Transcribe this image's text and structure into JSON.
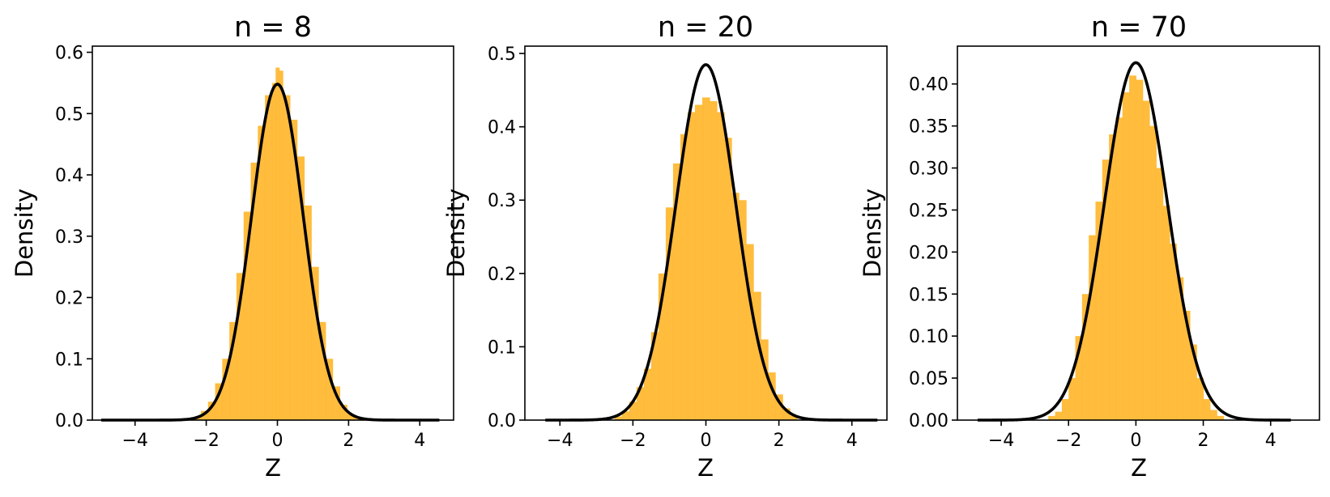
{
  "figure": {
    "colors": {
      "bar": "#ffb833",
      "curve": "#000000",
      "axis": "#000000"
    }
  },
  "chart_data": [
    {
      "type": "histogram",
      "title": "n = 8",
      "xlabel": "Z",
      "ylabel": "Density",
      "xlim": [
        -5.2,
        4.95
      ],
      "ylim": [
        0,
        0.61
      ],
      "xticks": [
        -4,
        -2,
        0,
        2,
        4
      ],
      "xtick_labels": [
        "−4",
        "−2",
        "0",
        "2",
        "4"
      ],
      "yticks": [
        0.0,
        0.1,
        0.2,
        0.3,
        0.4,
        0.5,
        0.6
      ],
      "ytick_labels": [
        "0.0",
        "0.1",
        "0.2",
        "0.3",
        "0.4",
        "0.5",
        "0.6"
      ],
      "grid": false,
      "histogram": {
        "bin_edges": [
          -2.35,
          -2.15,
          -1.95,
          -1.75,
          -1.55,
          -1.35,
          -1.15,
          -0.95,
          -0.75,
          -0.55,
          -0.35,
          -0.15,
          -0.05,
          0.05,
          0.15,
          0.35,
          0.55,
          0.75,
          0.95,
          1.15,
          1.35,
          1.55,
          1.75,
          1.95,
          2.15,
          2.35
        ],
        "densities": [
          0.005,
          0.015,
          0.03,
          0.06,
          0.1,
          0.16,
          0.24,
          0.34,
          0.42,
          0.48,
          0.53,
          0.55,
          0.575,
          0.57,
          0.53,
          0.49,
          0.43,
          0.35,
          0.25,
          0.16,
          0.1,
          0.055,
          0.025,
          0.01,
          0.004
        ]
      },
      "curve": {
        "mean": 0,
        "sd": 0.728,
        "x_range": [
          -4.95,
          4.55
        ]
      }
    },
    {
      "type": "histogram",
      "title": "n = 20",
      "xlabel": "Z",
      "ylabel": "Density",
      "xlim": [
        -4.96,
        4.96
      ],
      "ylim": [
        0,
        0.51
      ],
      "xticks": [
        -4,
        -2,
        0,
        2,
        4
      ],
      "xtick_labels": [
        "−4",
        "−2",
        "0",
        "2",
        "4"
      ],
      "yticks": [
        0.0,
        0.1,
        0.2,
        0.3,
        0.4,
        0.5
      ],
      "ytick_labels": [
        "0.0",
        "0.1",
        "0.2",
        "0.3",
        "0.4",
        "0.5"
      ],
      "grid": false,
      "histogram": {
        "bin_edges": [
          -2.5,
          -2.3,
          -2.1,
          -1.9,
          -1.7,
          -1.5,
          -1.3,
          -1.1,
          -0.9,
          -0.7,
          -0.5,
          -0.3,
          -0.1,
          0.1,
          0.3,
          0.5,
          0.7,
          0.9,
          1.1,
          1.3,
          1.5,
          1.7,
          1.9,
          2.1,
          2.3,
          2.5
        ],
        "densities": [
          0.005,
          0.012,
          0.025,
          0.045,
          0.07,
          0.12,
          0.2,
          0.29,
          0.35,
          0.39,
          0.42,
          0.43,
          0.44,
          0.435,
          0.42,
          0.385,
          0.31,
          0.3,
          0.24,
          0.175,
          0.11,
          0.065,
          0.035,
          0.016,
          0.006
        ]
      },
      "curve": {
        "mean": 0,
        "sd": 0.823,
        "x_range": [
          -4.4,
          4.7
        ]
      }
    },
    {
      "type": "histogram",
      "title": "n = 70",
      "xlabel": "Z",
      "ylabel": "Density",
      "xlim": [
        -5.3,
        5.45
      ],
      "ylim": [
        0,
        0.445
      ],
      "xticks": [
        -4,
        -2,
        0,
        2,
        4
      ],
      "xtick_labels": [
        "−4",
        "−2",
        "0",
        "2",
        "4"
      ],
      "yticks": [
        0.0,
        0.05,
        0.1,
        0.15,
        0.2,
        0.25,
        0.3,
        0.35,
        0.4
      ],
      "ytick_labels": [
        "0.00",
        "0.05",
        "0.10",
        "0.15",
        "0.20",
        "0.25",
        "0.30",
        "0.35",
        "0.40"
      ],
      "grid": false,
      "histogram": {
        "bin_edges": [
          -2.6,
          -2.4,
          -2.2,
          -2.0,
          -1.8,
          -1.6,
          -1.4,
          -1.2,
          -1.0,
          -0.8,
          -0.6,
          -0.4,
          -0.2,
          0.0,
          0.2,
          0.4,
          0.6,
          0.8,
          1.0,
          1.2,
          1.4,
          1.6,
          1.8,
          2.0,
          2.2,
          2.4,
          2.6
        ],
        "densities": [
          0.005,
          0.01,
          0.025,
          0.05,
          0.1,
          0.15,
          0.22,
          0.26,
          0.31,
          0.34,
          0.36,
          0.39,
          0.41,
          0.405,
          0.38,
          0.35,
          0.3,
          0.255,
          0.21,
          0.17,
          0.13,
          0.09,
          0.05,
          0.025,
          0.012,
          0.005
        ]
      },
      "curve": {
        "mean": 0,
        "sd": 0.938,
        "x_range": [
          -4.7,
          4.6
        ]
      }
    }
  ]
}
